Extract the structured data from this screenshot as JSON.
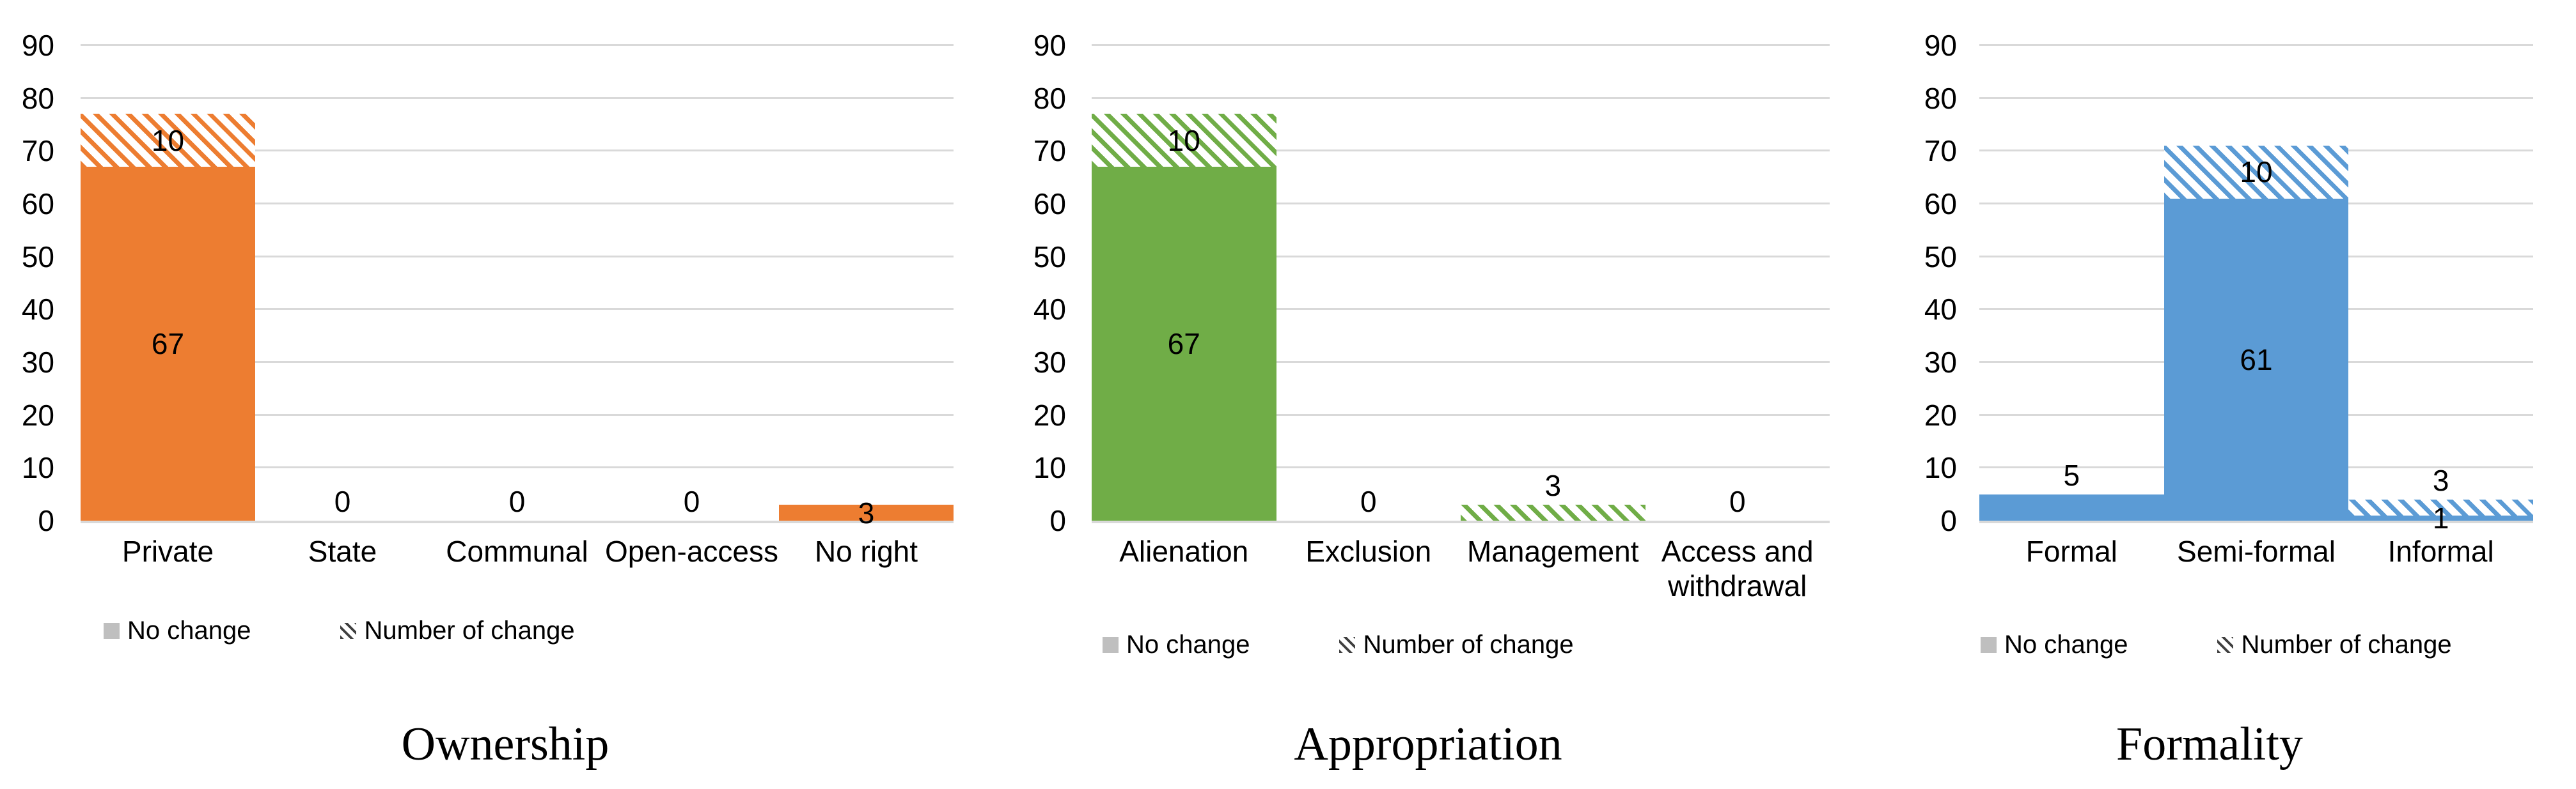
{
  "colors": {
    "ownership_orange": "#ED7D31",
    "appropriation_green": "#70AD47",
    "formality_blue": "#5B9BD5",
    "gridline_gray": "#D9D9D9",
    "legend_marker_gray": "#BFBFBF",
    "legend_hatch_dark": "#404040",
    "text_black": "#000000",
    "background": "#FFFFFF"
  },
  "legend": {
    "items": [
      {
        "label": "No change",
        "swatch": "solid-gray"
      },
      {
        "label": "Number of change",
        "swatch": "hatch"
      }
    ]
  },
  "chart_data": [
    {
      "type": "bar",
      "stacked": true,
      "title": "Ownership",
      "color": "#ED7D31",
      "ylim": [
        0,
        90
      ],
      "yticks": [
        0,
        10,
        20,
        30,
        40,
        50,
        60,
        70,
        80,
        90
      ],
      "grid": true,
      "legend_position": "bottom-left",
      "categories": [
        "Private",
        "State",
        "Communal",
        "Open-access",
        "No right"
      ],
      "series": [
        {
          "name": "No change",
          "style": "solid",
          "values": [
            67,
            0,
            0,
            0,
            3
          ]
        },
        {
          "name": "Number of change",
          "style": "hatched",
          "values": [
            10,
            0,
            0,
            0,
            0
          ]
        }
      ],
      "bar_labels": [
        {
          "text": "67",
          "category": "Private",
          "mode": "center",
          "anchor": 33.5
        },
        {
          "text": "10",
          "category": "Private",
          "mode": "center",
          "anchor": 72
        },
        {
          "text": "0",
          "category": "State",
          "mode": "above",
          "anchor": 0
        },
        {
          "text": "0",
          "category": "Communal",
          "mode": "above",
          "anchor": 0
        },
        {
          "text": "0",
          "category": "Open-access",
          "mode": "above",
          "anchor": 0
        },
        {
          "text": "3",
          "category": "No right",
          "mode": "center",
          "anchor": 1.5
        }
      ]
    },
    {
      "type": "bar",
      "stacked": true,
      "title": "Appropriation",
      "color": "#70AD47",
      "ylim": [
        0,
        90
      ],
      "yticks": [
        0,
        10,
        20,
        30,
        40,
        50,
        60,
        70,
        80,
        90
      ],
      "grid": true,
      "legend_position": "bottom-left",
      "categories": [
        "Alienation",
        "Exclusion",
        "Management",
        "Access and withdrawal"
      ],
      "series": [
        {
          "name": "No change",
          "style": "solid",
          "values": [
            67,
            0,
            0,
            0
          ]
        },
        {
          "name": "Number of change",
          "style": "hatched",
          "values": [
            10,
            0,
            3,
            0
          ]
        }
      ],
      "bar_labels": [
        {
          "text": "67",
          "category": "Alienation",
          "mode": "center",
          "anchor": 33.5
        },
        {
          "text": "10",
          "category": "Alienation",
          "mode": "center",
          "anchor": 72
        },
        {
          "text": "0",
          "category": "Exclusion",
          "mode": "above",
          "anchor": 0
        },
        {
          "text": "3",
          "category": "Management",
          "mode": "above",
          "anchor": 3
        },
        {
          "text": "0",
          "category": "Access and withdrawal",
          "mode": "above",
          "anchor": 0
        }
      ]
    },
    {
      "type": "bar",
      "stacked": true,
      "title": "Formality",
      "color": "#5B9BD5",
      "ylim": [
        0,
        90
      ],
      "yticks": [
        0,
        10,
        20,
        30,
        40,
        50,
        60,
        70,
        80,
        90
      ],
      "grid": true,
      "legend_position": "bottom-left",
      "categories": [
        "Formal",
        "Semi-formal",
        "Informal"
      ],
      "series": [
        {
          "name": "No change",
          "style": "solid",
          "values": [
            5,
            61,
            1
          ]
        },
        {
          "name": "Number of change",
          "style": "hatched",
          "values": [
            0,
            10,
            3
          ]
        }
      ],
      "bar_labels": [
        {
          "text": "5",
          "category": "Formal",
          "mode": "above",
          "anchor": 5
        },
        {
          "text": "61",
          "category": "Semi-formal",
          "mode": "center",
          "anchor": 30.5
        },
        {
          "text": "10",
          "category": "Semi-formal",
          "mode": "center",
          "anchor": 66
        },
        {
          "text": "3",
          "category": "Informal",
          "mode": "above",
          "anchor": 4
        },
        {
          "text": "1",
          "category": "Informal",
          "mode": "center",
          "anchor": 0.5
        }
      ]
    }
  ]
}
